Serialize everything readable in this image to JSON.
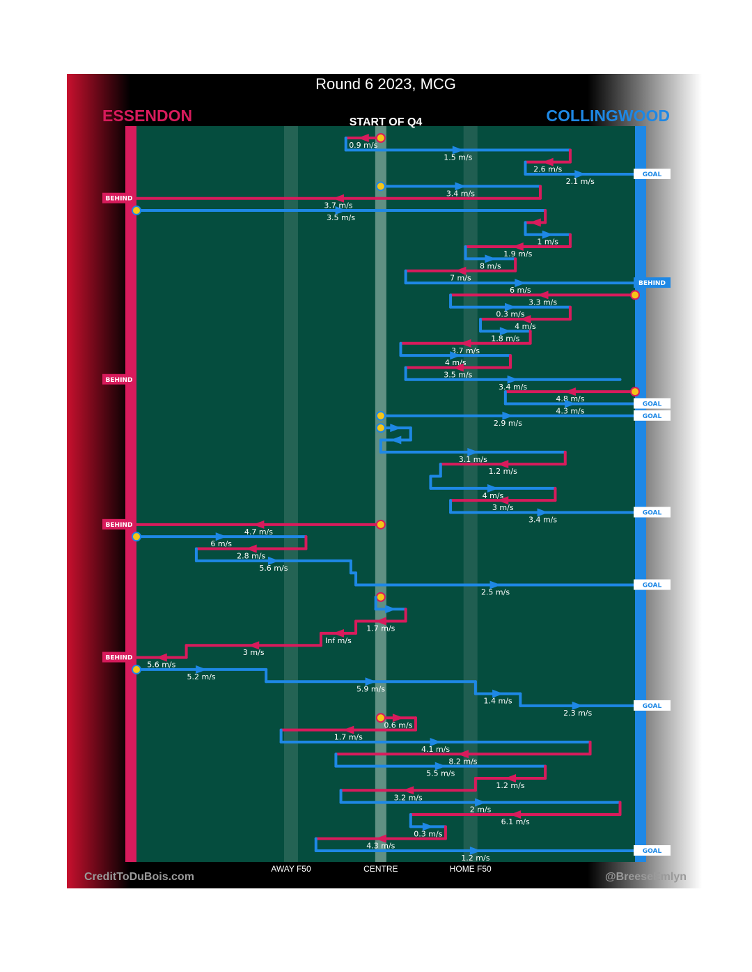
{
  "title": "Round 6 2023, MCG",
  "subtitle": "START OF Q4",
  "teams": {
    "left": {
      "name": "ESSENDON",
      "color": "#d81b5c"
    },
    "right": {
      "name": "COLLINGWOOD",
      "color": "#1e88e5"
    }
  },
  "credits": {
    "left": "CreditToDuBois.com",
    "right": "@BreeseEmlyn"
  },
  "colors": {
    "field": "#054d3e",
    "ball": "#f5c518"
  },
  "chart_data": {
    "type": "line",
    "title": "Round 6 2023, MCG",
    "subtitle": "START OF Q4",
    "x_axis": {
      "range": [
        0,
        1
      ],
      "ticks": [
        {
          "label": "AWAY F50",
          "x": 0.31
        },
        {
          "label": "CENTRE",
          "x": 0.49
        },
        {
          "label": "HOME F50",
          "x": 0.67
        }
      ]
    },
    "chains": [
      {
        "team": "ESSENDON",
        "from": 0.49,
        "to": 0.42,
        "speed": "0.9 m/s"
      },
      {
        "team": "COLLINGWOOD",
        "from": 0.42,
        "to": 0.87,
        "speed": "1.5 m/s"
      },
      {
        "team": "ESSENDON",
        "from": 0.87,
        "to": 0.78,
        "speed": "2.6 m/s"
      },
      {
        "team": "COLLINGWOOD",
        "from": 0.78,
        "to": 1.0,
        "speed": "2.1 m/s",
        "result": "GOAL"
      },
      {
        "team": "COLLINGWOOD",
        "from": 0.49,
        "to": 0.81,
        "speed": "3.4 m/s"
      },
      {
        "team": "ESSENDON",
        "from": 0.81,
        "to": 0.0,
        "speed": "3.7 m/s",
        "result": "BEHIND"
      },
      {
        "team": "COLLINGWOOD",
        "from": 0.0,
        "to": 0.82,
        "speed": "3.5 m/s"
      },
      {
        "team": "ESSENDON",
        "from": 0.82,
        "to": 0.78,
        "speed": ""
      },
      {
        "team": "COLLINGWOOD",
        "from": 0.78,
        "to": 0.87,
        "speed": "1 m/s"
      },
      {
        "team": "ESSENDON",
        "from": 0.87,
        "to": 0.66,
        "speed": "1.9 m/s"
      },
      {
        "team": "COLLINGWOOD",
        "from": 0.66,
        "to": 0.76,
        "speed": "8 m/s"
      },
      {
        "team": "ESSENDON",
        "from": 0.76,
        "to": 0.54,
        "speed": "7 m/s"
      },
      {
        "team": "COLLINGWOOD",
        "from": 0.54,
        "to": 1.0,
        "speed": "6 m/s",
        "result": "BEHIND"
      },
      {
        "team": "ESSENDON",
        "from": 1.0,
        "to": 0.63,
        "speed": "3.3 m/s"
      },
      {
        "team": "COLLINGWOOD",
        "from": 0.63,
        "to": 0.87,
        "speed": "0.3 m/s"
      },
      {
        "team": "ESSENDON",
        "from": 0.87,
        "to": 0.69,
        "speed": "4 m/s"
      },
      {
        "team": "COLLINGWOOD",
        "from": 0.69,
        "to": 0.79,
        "speed": "1.8 m/s"
      },
      {
        "team": "ESSENDON",
        "from": 0.79,
        "to": 0.53,
        "speed": "3.7 m/s"
      },
      {
        "team": "COLLINGWOOD",
        "from": 0.53,
        "to": 0.75,
        "speed": "4 m/s"
      },
      {
        "team": "ESSENDON",
        "from": 0.75,
        "to": 0.54,
        "speed": "3.5 m/s"
      },
      {
        "team": "COLLINGWOOD",
        "from": 0.54,
        "to": 0.97,
        "speed": "3.4 m/s",
        "result": "BEHIND"
      },
      {
        "team": "ESSENDON",
        "from": 1.0,
        "to": 0.74,
        "speed": "4.8 m/s"
      },
      {
        "team": "COLLINGWOOD",
        "from": 0.74,
        "to": 1.0,
        "speed": "4.3 m/s",
        "result": "GOAL"
      },
      {
        "team": "COLLINGWOOD",
        "from": 0.49,
        "to": 1.0,
        "speed": "2.9 m/s",
        "result": "GOAL"
      },
      {
        "team": "COLLINGWOOD",
        "from": 0.49,
        "to": 0.55,
        "speed": ""
      },
      {
        "team": "COLLINGWOOD",
        "from": 0.55,
        "to": 0.49,
        "speed": ""
      },
      {
        "team": "COLLINGWOOD",
        "from": 0.49,
        "to": 0.86,
        "speed": "3.1 m/s"
      },
      {
        "team": "ESSENDON",
        "from": 0.86,
        "to": 0.61,
        "speed": "1.2 m/s"
      },
      {
        "team": "COLLINGWOOD",
        "from": 0.61,
        "to": 0.59,
        "speed": ""
      },
      {
        "team": "COLLINGWOOD",
        "from": 0.59,
        "to": 0.84,
        "speed": "4 m/s"
      },
      {
        "team": "ESSENDON",
        "from": 0.84,
        "to": 0.63,
        "speed": "3 m/s"
      },
      {
        "team": "COLLINGWOOD",
        "from": 0.63,
        "to": 1.0,
        "speed": "3.4 m/s",
        "result": "GOAL"
      },
      {
        "team": "ESSENDON",
        "from": 0.49,
        "to": 0.0,
        "speed": "4.7 m/s",
        "result": "BEHIND"
      },
      {
        "team": "COLLINGWOOD",
        "from": 0.0,
        "to": 0.34,
        "speed": "6 m/s"
      },
      {
        "team": "ESSENDON",
        "from": 0.34,
        "to": 0.12,
        "speed": "2.8 m/s"
      },
      {
        "team": "COLLINGWOOD",
        "from": 0.12,
        "to": 0.43,
        "speed": "5.6 m/s"
      },
      {
        "team": "COLLINGWOOD",
        "from": 0.43,
        "to": 0.44,
        "speed": ""
      },
      {
        "team": "COLLINGWOOD",
        "from": 0.44,
        "to": 1.0,
        "speed": "2.5 m/s",
        "result": "GOAL"
      },
      {
        "team": "ESSENDON",
        "from": 0.49,
        "to": 0.48,
        "speed": ""
      },
      {
        "team": "COLLINGWOOD",
        "from": 0.48,
        "to": 0.54,
        "speed": ""
      },
      {
        "team": "ESSENDON",
        "from": 0.54,
        "to": 0.44,
        "speed": "1.7 m/s"
      },
      {
        "team": "ESSENDON",
        "from": 0.44,
        "to": 0.37,
        "speed": "Inf m/s"
      },
      {
        "team": "ESSENDON",
        "from": 0.37,
        "to": 0.1,
        "speed": "3 m/s"
      },
      {
        "team": "ESSENDON",
        "from": 0.1,
        "to": 0.0,
        "speed": "5.6 m/s",
        "result": "BEHIND"
      },
      {
        "team": "COLLINGWOOD",
        "from": 0.0,
        "to": 0.26,
        "speed": "5.2 m/s"
      },
      {
        "team": "COLLINGWOOD",
        "from": 0.26,
        "to": 0.68,
        "speed": "5.9 m/s"
      },
      {
        "team": "COLLINGWOOD",
        "from": 0.68,
        "to": 0.77,
        "speed": "1.4 m/s"
      },
      {
        "team": "COLLINGWOOD",
        "from": 0.77,
        "to": 1.0,
        "speed": "2.3 m/s",
        "result": "GOAL"
      },
      {
        "team": "ESSENDON",
        "from": 0.49,
        "to": 0.56,
        "speed": "0.6 m/s"
      },
      {
        "team": "ESSENDON",
        "from": 0.56,
        "to": 0.29,
        "speed": "1.7 m/s"
      },
      {
        "team": "COLLINGWOOD",
        "from": 0.29,
        "to": 0.91,
        "speed": "4.1 m/s"
      },
      {
        "team": "ESSENDON",
        "from": 0.91,
        "to": 0.4,
        "speed": "8.2 m/s"
      },
      {
        "team": "COLLINGWOOD",
        "from": 0.4,
        "to": 0.82,
        "speed": "5.5 m/s"
      },
      {
        "team": "ESSENDON",
        "from": 0.82,
        "to": 0.68,
        "speed": "1.2 m/s"
      },
      {
        "team": "ESSENDON",
        "from": 0.68,
        "to": 0.41,
        "speed": "3.2 m/s"
      },
      {
        "team": "COLLINGWOOD",
        "from": 0.41,
        "to": 0.97,
        "speed": "2 m/s"
      },
      {
        "team": "ESSENDON",
        "from": 0.97,
        "to": 0.55,
        "speed": "6.1 m/s"
      },
      {
        "team": "COLLINGWOOD",
        "from": 0.55,
        "to": 0.62,
        "speed": "0.3 m/s"
      },
      {
        "team": "ESSENDON",
        "from": 0.62,
        "to": 0.36,
        "speed": "4.3 m/s"
      },
      {
        "team": "COLLINGWOOD",
        "from": 0.36,
        "to": 1.0,
        "speed": "1.2 m/s",
        "result": "GOAL"
      }
    ]
  }
}
